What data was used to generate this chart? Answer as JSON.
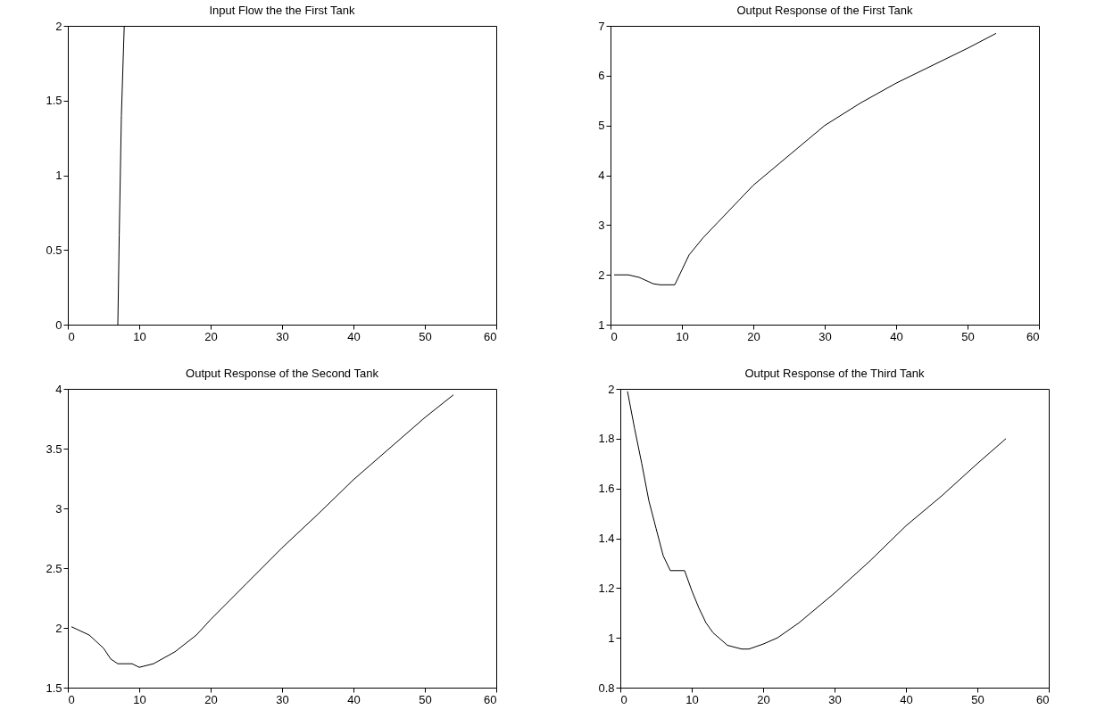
{
  "chart_data": [
    {
      "type": "line",
      "title": "Input Flow the the First Tank",
      "xlim": [
        0,
        60
      ],
      "xticks": [
        0,
        10,
        20,
        30,
        40,
        50,
        60
      ],
      "ylim": [
        0,
        2
      ],
      "yticks": [
        0,
        0.5,
        1,
        1.5,
        2
      ],
      "series": [
        {
          "color": "#000000",
          "x": [
            7,
            7.2,
            7.5,
            7.9
          ],
          "values": [
            0,
            0.6,
            1.4,
            2
          ]
        }
      ]
    },
    {
      "type": "line",
      "title": "Output Response of the First Tank",
      "xlim": [
        0,
        60
      ],
      "xticks": [
        0,
        10,
        20,
        30,
        40,
        50,
        60
      ],
      "ylim": [
        1,
        7
      ],
      "yticks": [
        1,
        2,
        3,
        4,
        5,
        6,
        7
      ],
      "series": [
        {
          "color": "#000000",
          "x": [
            0.5,
            2.5,
            4,
            6,
            7,
            9,
            10,
            11,
            13,
            15,
            18,
            20,
            25,
            30,
            35,
            40,
            45,
            50,
            54
          ],
          "values": [
            2,
            2,
            1.95,
            1.82,
            1.8,
            1.8,
            2.1,
            2.4,
            2.75,
            3.05,
            3.5,
            3.8,
            4.4,
            5.0,
            5.45,
            5.85,
            6.2,
            6.55,
            6.85
          ]
        }
      ]
    },
    {
      "type": "line",
      "title": "Output Response of the Second Tank",
      "xlim": [
        0,
        60
      ],
      "xticks": [
        0,
        10,
        20,
        30,
        40,
        50,
        60
      ],
      "ylim": [
        1.5,
        4
      ],
      "yticks": [
        1.5,
        2,
        2.5,
        3,
        3.5,
        4
      ],
      "series": [
        {
          "color": "#000000",
          "x": [
            0.5,
            3,
            5,
            6,
            7,
            9,
            10,
            12,
            15,
            18,
            20,
            25,
            30,
            35,
            40,
            45,
            50,
            54
          ],
          "values": [
            2.01,
            1.94,
            1.83,
            1.74,
            1.7,
            1.7,
            1.67,
            1.7,
            1.8,
            1.94,
            2.07,
            2.37,
            2.67,
            2.95,
            3.24,
            3.5,
            3.76,
            3.95
          ]
        }
      ]
    },
    {
      "type": "line",
      "title": "Output Response of the Third Tank",
      "xlim": [
        0,
        60
      ],
      "xticks": [
        0,
        10,
        20,
        30,
        40,
        50,
        60
      ],
      "ylim": [
        0.8,
        2
      ],
      "yticks": [
        0.8,
        1,
        1.2,
        1.4,
        1.6,
        1.8,
        2
      ],
      "series": [
        {
          "color": "#000000",
          "x": [
            1,
            2,
            3,
            4,
            5,
            6,
            7,
            9,
            10,
            11,
            12,
            13,
            15,
            17,
            18,
            20,
            22,
            25,
            30,
            35,
            40,
            45,
            50,
            54
          ],
          "values": [
            1.99,
            1.84,
            1.7,
            1.55,
            1.44,
            1.33,
            1.27,
            1.27,
            1.19,
            1.12,
            1.06,
            1.02,
            0.97,
            0.955,
            0.955,
            0.975,
            1.0,
            1.06,
            1.18,
            1.31,
            1.45,
            1.57,
            1.7,
            1.8
          ]
        }
      ]
    }
  ]
}
